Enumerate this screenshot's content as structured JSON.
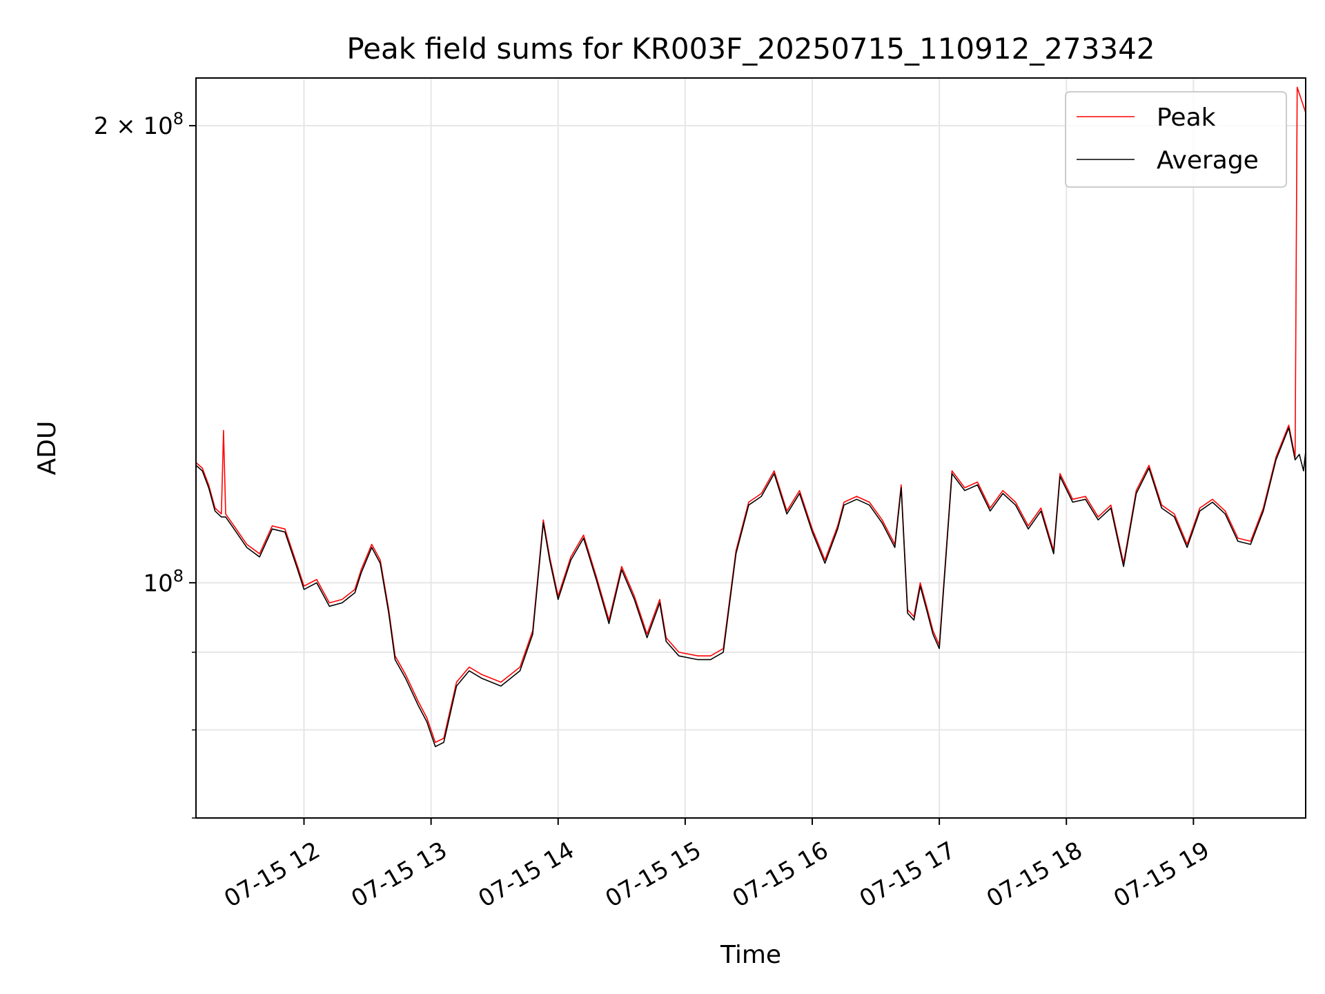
{
  "chart_data": {
    "type": "line",
    "title": "Peak field sums for KR003F_20250715_110912_273342",
    "xlabel": "Time",
    "ylabel": "ADU",
    "yscale": "log",
    "ylim": [
      70000000,
      215000000
    ],
    "xlim": [
      "2025-07-15 11:09",
      "2025-07-15 19:53"
    ],
    "grid": true,
    "legend_position": "upper right",
    "x_ticks": [
      {
        "time": "2025-07-15 12:00",
        "label": "07-15 12"
      },
      {
        "time": "2025-07-15 13:00",
        "label": "07-15 13"
      },
      {
        "time": "2025-07-15 14:00",
        "label": "07-15 14"
      },
      {
        "time": "2025-07-15 15:00",
        "label": "07-15 15"
      },
      {
        "time": "2025-07-15 16:00",
        "label": "07-15 16"
      },
      {
        "time": "2025-07-15 17:00",
        "label": "07-15 17"
      },
      {
        "time": "2025-07-15 18:00",
        "label": "07-15 18"
      },
      {
        "time": "2025-07-15 19:00",
        "label": "07-15 19"
      }
    ],
    "y_major_ticks": [
      {
        "value": 200000000,
        "base": "2 × 10",
        "exp": "8"
      },
      {
        "value": 100000000,
        "base": "10",
        "exp": "8"
      }
    ],
    "y_minor_ticks": [
      90000000,
      80000000,
      70000000
    ],
    "series": [
      {
        "name": "Peak",
        "color": "#ff0000",
        "points": [
          [
            "2025-07-15 11:09",
            120000000
          ],
          [
            "2025-07-15 11:12",
            119000000
          ],
          [
            "2025-07-15 11:15",
            116000000
          ],
          [
            "2025-07-15 11:18",
            112000000
          ],
          [
            "2025-07-15 11:21",
            111000000
          ],
          [
            "2025-07-15 11:22",
            126000000
          ],
          [
            "2025-07-15 11:23",
            111000000
          ],
          [
            "2025-07-15 11:27",
            109000000
          ],
          [
            "2025-07-15 11:33",
            106000000
          ],
          [
            "2025-07-15 11:39",
            104500000
          ],
          [
            "2025-07-15 11:45",
            109000000
          ],
          [
            "2025-07-15 11:51",
            108500000
          ],
          [
            "2025-07-15 11:57",
            102500000
          ],
          [
            "2025-07-15 12:00",
            99500000
          ],
          [
            "2025-07-15 12:06",
            100500000
          ],
          [
            "2025-07-15 12:12",
            97000000
          ],
          [
            "2025-07-15 12:18",
            97500000
          ],
          [
            "2025-07-15 12:24",
            99000000
          ],
          [
            "2025-07-15 12:27",
            102000000
          ],
          [
            "2025-07-15 12:32",
            106000000
          ],
          [
            "2025-07-15 12:36",
            103500000
          ],
          [
            "2025-07-15 12:40",
            96000000
          ],
          [
            "2025-07-15 12:43",
            89500000
          ],
          [
            "2025-07-15 12:48",
            87000000
          ],
          [
            "2025-07-15 12:54",
            83500000
          ],
          [
            "2025-07-15 12:58",
            81500000
          ],
          [
            "2025-07-15 13:02",
            78500000
          ],
          [
            "2025-07-15 13:06",
            79000000
          ],
          [
            "2025-07-15 13:12",
            86000000
          ],
          [
            "2025-07-15 13:18",
            88000000
          ],
          [
            "2025-07-15 13:24",
            87000000
          ],
          [
            "2025-07-15 13:33",
            86000000
          ],
          [
            "2025-07-15 13:42",
            88000000
          ],
          [
            "2025-07-15 13:48",
            93000000
          ],
          [
            "2025-07-15 13:53",
            110000000
          ],
          [
            "2025-07-15 13:56",
            104000000
          ],
          [
            "2025-07-15 14:00",
            98000000
          ],
          [
            "2025-07-15 14:06",
            104000000
          ],
          [
            "2025-07-15 14:12",
            107500000
          ],
          [
            "2025-07-15 14:18",
            101000000
          ],
          [
            "2025-07-15 14:24",
            94500000
          ],
          [
            "2025-07-15 14:30",
            102500000
          ],
          [
            "2025-07-15 14:36",
            98000000
          ],
          [
            "2025-07-15 14:42",
            92500000
          ],
          [
            "2025-07-15 14:48",
            97500000
          ],
          [
            "2025-07-15 14:51",
            92000000
          ],
          [
            "2025-07-15 14:57",
            90000000
          ],
          [
            "2025-07-15 15:06",
            89500000
          ],
          [
            "2025-07-15 15:12",
            89500000
          ],
          [
            "2025-07-15 15:18",
            90500000
          ],
          [
            "2025-07-15 15:24",
            105000000
          ],
          [
            "2025-07-15 15:30",
            113000000
          ],
          [
            "2025-07-15 15:36",
            114500000
          ],
          [
            "2025-07-15 15:42",
            118500000
          ],
          [
            "2025-07-15 15:48",
            111500000
          ],
          [
            "2025-07-15 15:54",
            115000000
          ],
          [
            "2025-07-15 16:00",
            108500000
          ],
          [
            "2025-07-15 16:06",
            103500000
          ],
          [
            "2025-07-15 16:12",
            109000000
          ],
          [
            "2025-07-15 16:15",
            113000000
          ],
          [
            "2025-07-15 16:21",
            114000000
          ],
          [
            "2025-07-15 16:27",
            113000000
          ],
          [
            "2025-07-15 16:33",
            110000000
          ],
          [
            "2025-07-15 16:39",
            106000000
          ],
          [
            "2025-07-15 16:42",
            116000000
          ],
          [
            "2025-07-15 16:45",
            96000000
          ],
          [
            "2025-07-15 16:48",
            95000000
          ],
          [
            "2025-07-15 16:51",
            100000000
          ],
          [
            "2025-07-15 16:54",
            96500000
          ],
          [
            "2025-07-15 16:57",
            93000000
          ],
          [
            "2025-07-15 17:00",
            91000000
          ],
          [
            "2025-07-15 17:06",
            118500000
          ],
          [
            "2025-07-15 17:12",
            115500000
          ],
          [
            "2025-07-15 17:18",
            116500000
          ],
          [
            "2025-07-15 17:24",
            112000000
          ],
          [
            "2025-07-15 17:30",
            115000000
          ],
          [
            "2025-07-15 17:36",
            113000000
          ],
          [
            "2025-07-15 17:42",
            109000000
          ],
          [
            "2025-07-15 17:48",
            112000000
          ],
          [
            "2025-07-15 17:54",
            105000000
          ],
          [
            "2025-07-15 17:57",
            118000000
          ],
          [
            "2025-07-15 18:03",
            113500000
          ],
          [
            "2025-07-15 18:09",
            114000000
          ],
          [
            "2025-07-15 18:15",
            110500000
          ],
          [
            "2025-07-15 18:21",
            112500000
          ],
          [
            "2025-07-15 18:27",
            103000000
          ],
          [
            "2025-07-15 18:33",
            115000000
          ],
          [
            "2025-07-15 18:39",
            119500000
          ],
          [
            "2025-07-15 18:45",
            112500000
          ],
          [
            "2025-07-15 18:51",
            111000000
          ],
          [
            "2025-07-15 18:57",
            106000000
          ],
          [
            "2025-07-15 19:03",
            112000000
          ],
          [
            "2025-07-15 19:09",
            113500000
          ],
          [
            "2025-07-15 19:15",
            111500000
          ],
          [
            "2025-07-15 19:21",
            107000000
          ],
          [
            "2025-07-15 19:27",
            106500000
          ],
          [
            "2025-07-15 19:33",
            112000000
          ],
          [
            "2025-07-15 19:39",
            121000000
          ],
          [
            "2025-07-15 19:45",
            127000000
          ],
          [
            "2025-07-15 19:48",
            121000000
          ],
          [
            "2025-07-15 19:49",
            212000000
          ],
          [
            "2025-07-15 19:53",
            204000000
          ]
        ]
      },
      {
        "name": "Average",
        "color": "#000000",
        "points": [
          [
            "2025-07-15 11:09",
            119500000
          ],
          [
            "2025-07-15 11:12",
            118500000
          ],
          [
            "2025-07-15 11:15",
            115500000
          ],
          [
            "2025-07-15 11:18",
            111500000
          ],
          [
            "2025-07-15 11:21",
            110500000
          ],
          [
            "2025-07-15 11:23",
            110500000
          ],
          [
            "2025-07-15 11:27",
            108500000
          ],
          [
            "2025-07-15 11:33",
            105500000
          ],
          [
            "2025-07-15 11:39",
            104000000
          ],
          [
            "2025-07-15 11:45",
            108500000
          ],
          [
            "2025-07-15 11:51",
            108000000
          ],
          [
            "2025-07-15 11:57",
            102000000
          ],
          [
            "2025-07-15 12:00",
            99000000
          ],
          [
            "2025-07-15 12:06",
            100000000
          ],
          [
            "2025-07-15 12:12",
            96500000
          ],
          [
            "2025-07-15 12:18",
            97000000
          ],
          [
            "2025-07-15 12:24",
            98500000
          ],
          [
            "2025-07-15 12:27",
            101500000
          ],
          [
            "2025-07-15 12:32",
            105500000
          ],
          [
            "2025-07-15 12:36",
            103000000
          ],
          [
            "2025-07-15 12:40",
            95500000
          ],
          [
            "2025-07-15 12:43",
            89000000
          ],
          [
            "2025-07-15 12:48",
            86500000
          ],
          [
            "2025-07-15 12:54",
            83000000
          ],
          [
            "2025-07-15 12:58",
            81000000
          ],
          [
            "2025-07-15 13:02",
            78000000
          ],
          [
            "2025-07-15 13:06",
            78500000
          ],
          [
            "2025-07-15 13:12",
            85500000
          ],
          [
            "2025-07-15 13:18",
            87500000
          ],
          [
            "2025-07-15 13:24",
            86500000
          ],
          [
            "2025-07-15 13:33",
            85500000
          ],
          [
            "2025-07-15 13:42",
            87500000
          ],
          [
            "2025-07-15 13:48",
            92500000
          ],
          [
            "2025-07-15 13:53",
            109500000
          ],
          [
            "2025-07-15 13:56",
            103500000
          ],
          [
            "2025-07-15 14:00",
            97500000
          ],
          [
            "2025-07-15 14:06",
            103500000
          ],
          [
            "2025-07-15 14:12",
            107000000
          ],
          [
            "2025-07-15 14:18",
            100500000
          ],
          [
            "2025-07-15 14:24",
            94000000
          ],
          [
            "2025-07-15 14:30",
            102000000
          ],
          [
            "2025-07-15 14:36",
            97500000
          ],
          [
            "2025-07-15 14:42",
            92000000
          ],
          [
            "2025-07-15 14:48",
            97000000
          ],
          [
            "2025-07-15 14:51",
            91500000
          ],
          [
            "2025-07-15 14:57",
            89500000
          ],
          [
            "2025-07-15 15:06",
            89000000
          ],
          [
            "2025-07-15 15:12",
            89000000
          ],
          [
            "2025-07-15 15:18",
            90000000
          ],
          [
            "2025-07-15 15:24",
            104500000
          ],
          [
            "2025-07-15 15:30",
            112500000
          ],
          [
            "2025-07-15 15:36",
            114000000
          ],
          [
            "2025-07-15 15:42",
            118000000
          ],
          [
            "2025-07-15 15:48",
            111000000
          ],
          [
            "2025-07-15 15:54",
            114500000
          ],
          [
            "2025-07-15 16:00",
            108000000
          ],
          [
            "2025-07-15 16:06",
            103000000
          ],
          [
            "2025-07-15 16:12",
            108500000
          ],
          [
            "2025-07-15 16:15",
            112500000
          ],
          [
            "2025-07-15 16:21",
            113500000
          ],
          [
            "2025-07-15 16:27",
            112500000
          ],
          [
            "2025-07-15 16:33",
            109500000
          ],
          [
            "2025-07-15 16:39",
            105500000
          ],
          [
            "2025-07-15 16:42",
            115500000
          ],
          [
            "2025-07-15 16:45",
            95500000
          ],
          [
            "2025-07-15 16:48",
            94500000
          ],
          [
            "2025-07-15 16:51",
            99500000
          ],
          [
            "2025-07-15 16:54",
            96000000
          ],
          [
            "2025-07-15 16:57",
            92500000
          ],
          [
            "2025-07-15 17:00",
            90500000
          ],
          [
            "2025-07-15 17:06",
            118000000
          ],
          [
            "2025-07-15 17:12",
            115000000
          ],
          [
            "2025-07-15 17:18",
            116000000
          ],
          [
            "2025-07-15 17:24",
            111500000
          ],
          [
            "2025-07-15 17:30",
            114500000
          ],
          [
            "2025-07-15 17:36",
            112500000
          ],
          [
            "2025-07-15 17:42",
            108500000
          ],
          [
            "2025-07-15 17:48",
            111500000
          ],
          [
            "2025-07-15 17:54",
            104500000
          ],
          [
            "2025-07-15 17:57",
            117500000
          ],
          [
            "2025-07-15 18:03",
            113000000
          ],
          [
            "2025-07-15 18:09",
            113500000
          ],
          [
            "2025-07-15 18:15",
            110000000
          ],
          [
            "2025-07-15 18:21",
            112000000
          ],
          [
            "2025-07-15 18:27",
            102500000
          ],
          [
            "2025-07-15 18:33",
            114500000
          ],
          [
            "2025-07-15 18:39",
            119000000
          ],
          [
            "2025-07-15 18:45",
            112000000
          ],
          [
            "2025-07-15 18:51",
            110500000
          ],
          [
            "2025-07-15 18:57",
            105500000
          ],
          [
            "2025-07-15 19:03",
            111500000
          ],
          [
            "2025-07-15 19:09",
            113000000
          ],
          [
            "2025-07-15 19:15",
            111000000
          ],
          [
            "2025-07-15 19:21",
            106500000
          ],
          [
            "2025-07-15 19:27",
            106000000
          ],
          [
            "2025-07-15 19:33",
            111500000
          ],
          [
            "2025-07-15 19:39",
            120500000
          ],
          [
            "2025-07-15 19:45",
            126500000
          ],
          [
            "2025-07-15 19:48",
            120500000
          ],
          [
            "2025-07-15 19:50",
            121500000
          ],
          [
            "2025-07-15 19:52",
            118500000
          ],
          [
            "2025-07-15 19:53",
            122000000
          ]
        ]
      }
    ]
  }
}
